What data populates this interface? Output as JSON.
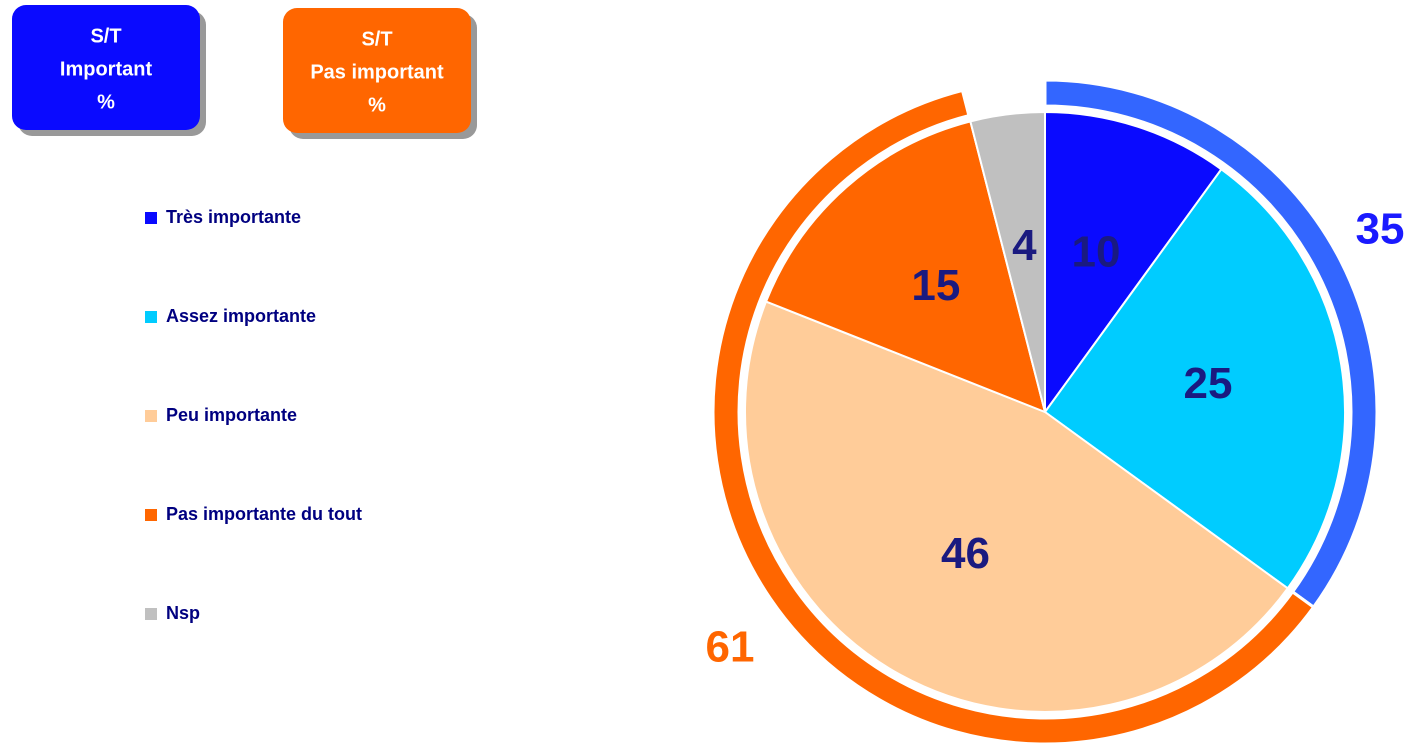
{
  "chart_data": {
    "type": "pie",
    "categories": [
      "Très importante",
      "Assez importante",
      "Peu importante",
      "Pas importante du tout",
      "Nsp"
    ],
    "values": [
      10,
      25,
      46,
      15,
      4
    ],
    "colors": [
      "#0a0aff",
      "#00ccff",
      "#ffcc99",
      "#ff6600",
      "#c0c0c0"
    ],
    "groups": [
      {
        "name": [
          "S/T",
          "Important",
          "%"
        ],
        "value": 35,
        "color": "#3366ff",
        "label_color": "#1a1aff",
        "box_color": "#0a0aff"
      },
      {
        "name": [
          "S/T",
          "Pas important",
          "%"
        ],
        "value": 61,
        "color": "#ff6600",
        "label_color": "#ff6600",
        "box_color": "#ff6600"
      }
    ]
  }
}
